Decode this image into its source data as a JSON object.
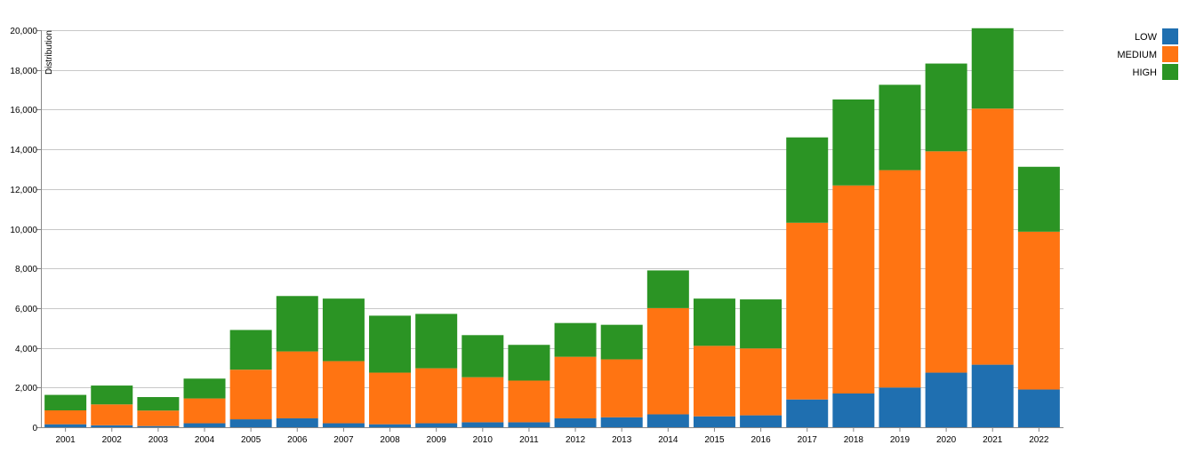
{
  "chart_data": {
    "type": "bar",
    "stacked": true,
    "title": "",
    "xlabel": "",
    "ylabel": "Distribution",
    "ylim": [
      0,
      20000
    ],
    "yticks": [
      0,
      2000,
      4000,
      6000,
      8000,
      10000,
      12000,
      14000,
      16000,
      18000,
      20000
    ],
    "ytick_labels": [
      "0",
      "2,000",
      "4,000",
      "6,000",
      "8,000",
      "10,000",
      "12,000",
      "14,000",
      "16,000",
      "18,000",
      "20,000"
    ],
    "grid": true,
    "legend_position": "top-right",
    "categories": [
      "2001",
      "2002",
      "2003",
      "2004",
      "2005",
      "2006",
      "2007",
      "2008",
      "2009",
      "2010",
      "2011",
      "2012",
      "2013",
      "2014",
      "2015",
      "2016",
      "2017",
      "2018",
      "2019",
      "2020",
      "2021",
      "2022"
    ],
    "series": [
      {
        "name": "LOW",
        "color": "#1f6fb0",
        "values": [
          150,
          100,
          60,
          200,
          400,
          450,
          200,
          150,
          200,
          250,
          250,
          450,
          500,
          650,
          550,
          600,
          1400,
          1700,
          2000,
          2750,
          3150,
          1900
        ]
      },
      {
        "name": "MEDIUM",
        "color": "#ff7412",
        "values": [
          700,
          1050,
          780,
          1250,
          2500,
          3370,
          3130,
          2600,
          2770,
          2270,
          2100,
          3100,
          2920,
          5350,
          3550,
          3370,
          8900,
          10480,
          10950,
          11150,
          12900,
          7950
        ]
      },
      {
        "name": "HIGH",
        "color": "#2b9424",
        "values": [
          780,
          950,
          680,
          1000,
          2000,
          2790,
          3150,
          2870,
          2740,
          2120,
          1800,
          1700,
          1740,
          1900,
          2380,
          2470,
          4300,
          4330,
          4300,
          4420,
          4050,
          3270
        ]
      }
    ]
  }
}
